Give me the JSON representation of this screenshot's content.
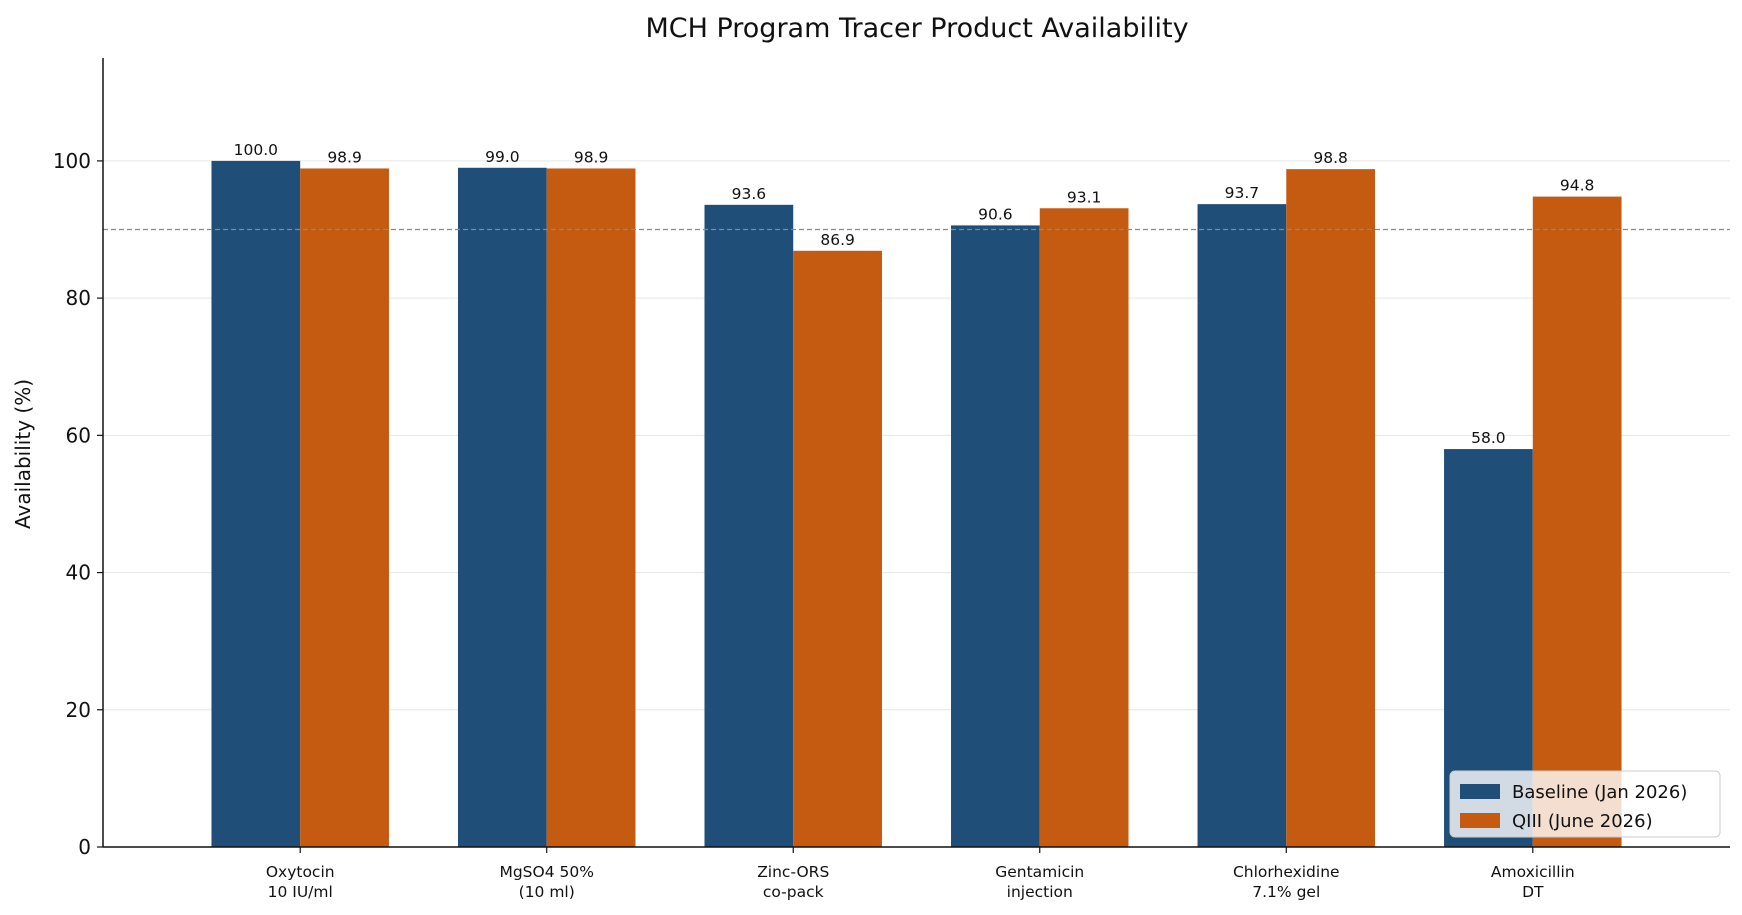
{
  "chart_data": {
    "type": "bar",
    "title": "MCH Program Tracer Product Availability",
    "xlabel": "",
    "ylabel": "Availability (%)",
    "ylim": [
      0,
      115
    ],
    "yticks": [
      0,
      20,
      40,
      60,
      80,
      100
    ],
    "reference_line": 90,
    "grid": "horizontal",
    "legend_position": "lower-right",
    "categories": [
      [
        "Oxytocin",
        "10 IU/ml"
      ],
      [
        "MgSO4 50%",
        "(10 ml)"
      ],
      [
        "Zinc-ORS",
        "co-pack"
      ],
      [
        "Gentamicin",
        "injection"
      ],
      [
        "Chlorhexidine",
        "7.1% gel"
      ],
      [
        "Amoxicillin",
        "DT"
      ]
    ],
    "series": [
      {
        "name": "Baseline (Jan 2026)",
        "color": "#1f4e79",
        "values": [
          100.0,
          99.0,
          93.6,
          90.6,
          93.7,
          58.0
        ]
      },
      {
        "name": "QIII (June 2026)",
        "color": "#c55a11",
        "values": [
          98.9,
          98.9,
          86.9,
          93.1,
          98.8,
          94.8
        ]
      }
    ]
  }
}
